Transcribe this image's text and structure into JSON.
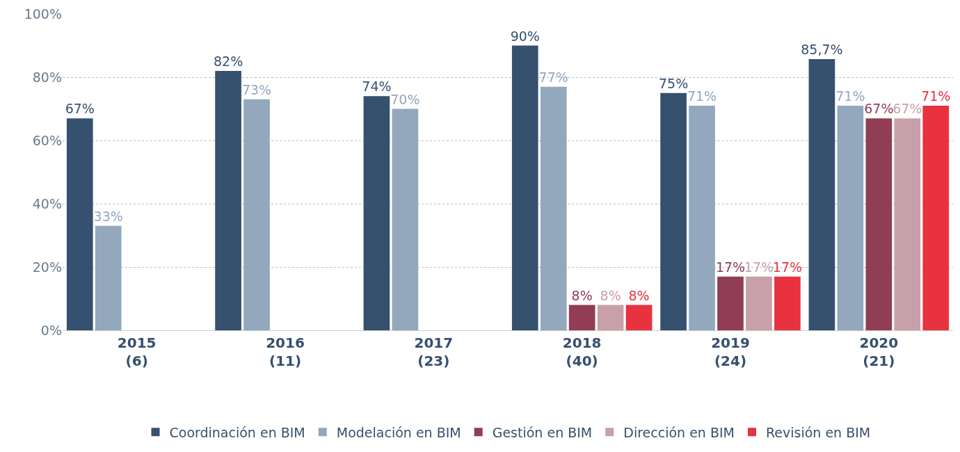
{
  "chart_data": {
    "type": "bar",
    "categories": [
      "2015\n(6)",
      "2016\n(11)",
      "2017\n(23)",
      "2018\n(40)",
      "2019\n(24)",
      "2020\n(21)"
    ],
    "series": [
      {
        "name": "Coordinación en BIM",
        "color": "#36506f",
        "values": [
          67,
          82,
          74,
          90,
          75,
          85.7
        ],
        "value_labels": [
          "67%",
          "82%",
          "74%",
          "90%",
          "75%",
          "85,7%"
        ]
      },
      {
        "name": "Modelación en BIM",
        "color": "#93a8bc",
        "values": [
          33,
          73,
          70,
          77,
          71,
          71
        ],
        "value_labels": [
          "33%",
          "73%",
          "70%",
          "77%",
          "71%",
          "71%"
        ]
      },
      {
        "name": "Gestión en BIM",
        "color": "#913d56",
        "values": [
          null,
          null,
          null,
          8,
          17,
          67
        ],
        "value_labels": [
          null,
          null,
          null,
          "8%",
          "17%",
          "67%"
        ]
      },
      {
        "name": "Dirección en BIM",
        "color": "#c8a0aa",
        "values": [
          null,
          null,
          null,
          8,
          17,
          67
        ],
        "value_labels": [
          null,
          null,
          null,
          "8%",
          "17%",
          "67%"
        ]
      },
      {
        "name": "Revisión en BIM",
        "color": "#e8323f",
        "values": [
          null,
          null,
          null,
          8,
          17,
          71
        ],
        "value_labels": [
          null,
          null,
          null,
          "8%",
          "17%",
          "71%"
        ]
      }
    ],
    "ylim": [
      0,
      100
    ],
    "yticks": [
      {
        "value": 0,
        "label": "0%"
      },
      {
        "value": 20,
        "label": "20%"
      },
      {
        "value": 40,
        "label": "40%"
      },
      {
        "value": 60,
        "label": "60%"
      },
      {
        "value": 80,
        "label": "80%"
      },
      {
        "value": 100,
        "label": "100%"
      }
    ],
    "grid": "y",
    "legend": "bottom"
  }
}
